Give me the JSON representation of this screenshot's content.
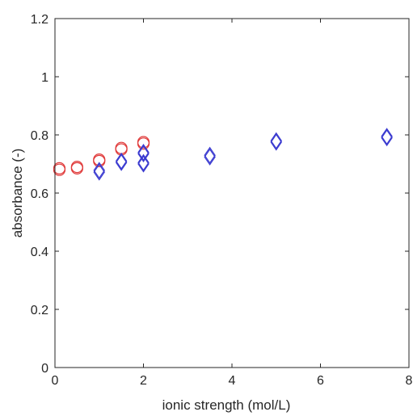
{
  "chart_data": {
    "type": "scatter",
    "title": "",
    "xlabel": "ionic strength (mol/L)",
    "ylabel": "absorbance (-)",
    "xlim": [
      0,
      8
    ],
    "ylim": [
      0,
      1.2
    ],
    "xticks": [
      0,
      2,
      4,
      6,
      8
    ],
    "yticks": [
      0,
      0.2,
      0.4,
      0.6,
      0.8,
      1,
      1.2
    ],
    "xtick_labels": [
      "0",
      "2",
      "4",
      "6",
      "8"
    ],
    "ytick_labels": [
      "0",
      "0.2",
      "0.4",
      "0.6",
      "0.8",
      "1",
      "1.2"
    ],
    "grid": false,
    "box": true,
    "series": [
      {
        "marker": "circle",
        "color": "#e03a3a",
        "points": [
          {
            "x": 0.1,
            "y": 0.685
          },
          {
            "x": 0.1,
            "y": 0.68
          },
          {
            "x": 0.5,
            "y": 0.69
          },
          {
            "x": 0.5,
            "y": 0.685
          },
          {
            "x": 1.0,
            "y": 0.715
          },
          {
            "x": 1.0,
            "y": 0.71
          },
          {
            "x": 1.5,
            "y": 0.755
          },
          {
            "x": 1.5,
            "y": 0.75
          },
          {
            "x": 2.0,
            "y": 0.775
          },
          {
            "x": 2.0,
            "y": 0.77
          }
        ]
      },
      {
        "marker": "diamond",
        "color": "#3a3ad0",
        "points": [
          {
            "x": 1.0,
            "y": 0.672
          },
          {
            "x": 1.0,
            "y": 0.678
          },
          {
            "x": 1.5,
            "y": 0.705
          },
          {
            "x": 1.5,
            "y": 0.71
          },
          {
            "x": 2.0,
            "y": 0.7
          },
          {
            "x": 2.0,
            "y": 0.705
          },
          {
            "x": 2.0,
            "y": 0.735
          },
          {
            "x": 2.0,
            "y": 0.74
          },
          {
            "x": 3.5,
            "y": 0.724
          },
          {
            "x": 3.5,
            "y": 0.73
          },
          {
            "x": 5.0,
            "y": 0.775
          },
          {
            "x": 5.0,
            "y": 0.78
          },
          {
            "x": 7.5,
            "y": 0.79
          },
          {
            "x": 7.5,
            "y": 0.795
          }
        ]
      }
    ]
  }
}
